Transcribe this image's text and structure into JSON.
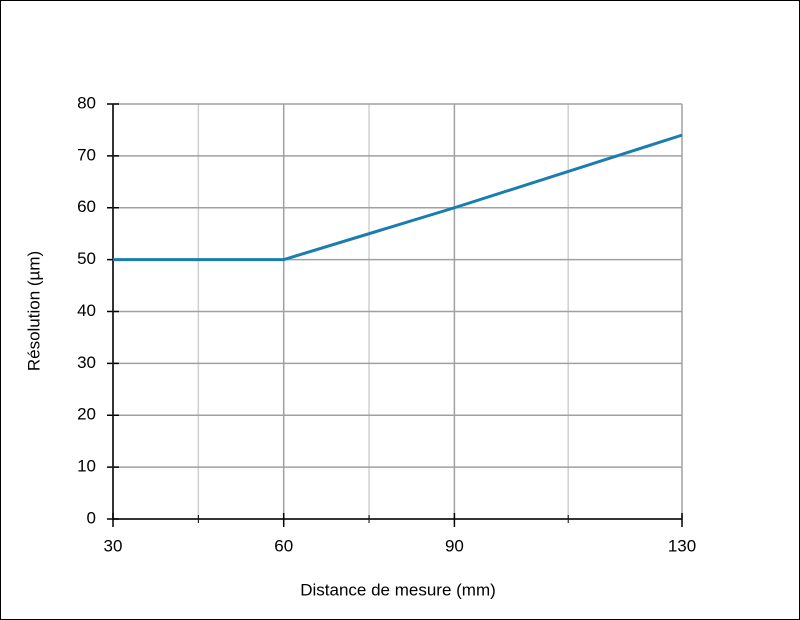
{
  "chart_data": {
    "type": "line",
    "x_label": "Distance de mesure (mm)",
    "y_label": "Résolution (µm)",
    "series": [
      {
        "color": "#1a7db0",
        "x": [
          30,
          60,
          90,
          130
        ],
        "values": [
          50,
          50,
          60,
          74
        ]
      }
    ],
    "xlim": [
      30,
      130
    ],
    "xticks": [
      30,
      60,
      90,
      130
    ],
    "xminorticks": [
      45,
      75,
      110
    ],
    "ylim": [
      0,
      80
    ],
    "yticks": [
      0,
      10,
      20,
      30,
      40,
      50,
      60,
      70,
      80
    ],
    "grid": true
  }
}
